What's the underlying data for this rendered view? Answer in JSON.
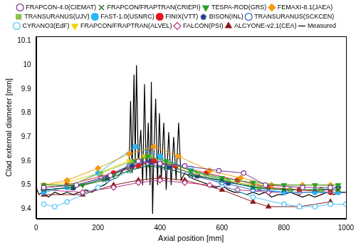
{
  "chart_data": {
    "type": "line",
    "x_label": "Axial position [mm]",
    "y_label": "Clad external diameter [mm]",
    "xlim": [
      0,
      1000
    ],
    "xticks": [
      0,
      200,
      400,
      600,
      800,
      1000
    ],
    "ylim": [
      9.36,
      10.12
    ],
    "yticks": [
      9.4,
      9.5,
      9.6,
      9.7,
      9.8,
      9.9,
      10,
      10.1
    ],
    "grid": false,
    "legend": "top",
    "series": [
      {
        "name": "FRAPCON-4.0(CIEMAT)",
        "color": "#7b3294",
        "marker": "circle-open",
        "x": [
          25,
          130,
          240,
          330,
          400,
          480,
          590,
          670,
          740,
          860,
          950
        ],
        "values": [
          9.49,
          9.5,
          9.54,
          9.6,
          9.59,
          9.58,
          9.56,
          9.55,
          9.5,
          9.49,
          9.49
        ]
      },
      {
        "name": "FRAPCON/FRAPTRAN(CRIEPI)",
        "color": "#1b5e20",
        "marker": "x",
        "x": [
          25,
          120,
          220,
          300,
          360,
          420,
          500,
          600,
          700,
          800,
          900,
          975
        ],
        "values": [
          9.48,
          9.49,
          9.52,
          9.56,
          9.58,
          9.57,
          9.54,
          9.52,
          9.49,
          9.48,
          9.48,
          9.48
        ]
      },
      {
        "name": "TESPA-ROD(GRS)",
        "color": "#2ca02c",
        "marker": "triangle-down",
        "x": [
          25,
          150,
          250,
          320,
          360,
          420,
          500,
          600,
          700,
          800,
          900,
          975
        ],
        "values": [
          9.5,
          9.5,
          9.54,
          9.6,
          9.62,
          9.6,
          9.56,
          9.53,
          9.51,
          9.5,
          9.5,
          9.5
        ]
      },
      {
        "name": "FEMAXI-8.1(JAEA)",
        "color": "#f39c12",
        "marker": "diamond",
        "x": [
          25,
          100,
          200,
          300,
          380,
          460,
          560,
          660,
          760,
          860,
          950
        ],
        "values": [
          9.5,
          9.52,
          9.57,
          9.63,
          9.66,
          9.62,
          9.56,
          9.53,
          9.5,
          9.5,
          9.5
        ]
      },
      {
        "name": "TRANSURANUS(UJV)",
        "color": "#8bc34a",
        "marker": "square",
        "x": [
          25,
          110,
          210,
          310,
          370,
          430,
          520,
          620,
          720,
          820,
          920,
          975
        ],
        "values": [
          9.49,
          9.5,
          9.55,
          9.6,
          9.62,
          9.59,
          9.55,
          9.52,
          9.49,
          9.48,
          9.48,
          9.48
        ]
      },
      {
        "name": "FAST-1.0(USNRC)",
        "color": "#29b6f6",
        "marker": "circle",
        "x": [
          25,
          100,
          200,
          320,
          400,
          500,
          600,
          700,
          800,
          900,
          975
        ],
        "values": [
          9.47,
          9.49,
          9.55,
          9.66,
          9.62,
          9.56,
          9.52,
          9.49,
          9.47,
          9.47,
          9.47
        ]
      },
      {
        "name": "FINIX(VTT)",
        "color": "#e31a1c",
        "marker": "circle",
        "x": [
          25,
          100,
          250,
          330,
          380,
          450,
          550,
          650,
          750,
          850,
          950
        ],
        "values": [
          9.49,
          9.5,
          9.55,
          9.58,
          9.6,
          9.58,
          9.55,
          9.52,
          9.49,
          9.48,
          9.47
        ]
      },
      {
        "name": "BISON(INL)",
        "color": "#1f3f8f",
        "marker": "pentagon",
        "x": [
          25,
          120,
          230,
          310,
          370,
          430,
          520,
          620,
          720,
          820,
          920,
          975
        ],
        "values": [
          9.48,
          9.49,
          9.53,
          9.58,
          9.6,
          9.58,
          9.54,
          9.51,
          9.49,
          9.48,
          9.48,
          9.49
        ]
      },
      {
        "name": "TRANSURANUS(SCKCEN)",
        "color": "#3060c0",
        "marker": "circle-open",
        "x": [
          25,
          110,
          210,
          300,
          360,
          420,
          500,
          600,
          700,
          800,
          900,
          975
        ],
        "values": [
          9.48,
          9.49,
          9.53,
          9.58,
          9.59,
          9.57,
          9.54,
          9.51,
          9.48,
          9.47,
          9.47,
          9.47
        ]
      },
      {
        "name": "CYRANO3(EdF)",
        "color": "#4fc3f7",
        "marker": "circle-open",
        "x": [
          25,
          60,
          100,
          200,
          300,
          400,
          500,
          600,
          700,
          800,
          850,
          900,
          950,
          1000
        ],
        "values": [
          9.42,
          9.41,
          9.43,
          9.49,
          9.56,
          9.6,
          9.57,
          9.5,
          9.45,
          9.42,
          9.41,
          9.41,
          9.42,
          9.42
        ]
      },
      {
        "name": "FRAPCON/FRAPTRAN(ALVEL)",
        "color": "#f5d000",
        "marker": "triangle-down",
        "x": [
          25,
          100,
          200,
          300,
          350,
          400,
          500,
          600,
          700,
          800,
          900,
          975
        ],
        "values": [
          9.5,
          9.51,
          9.55,
          9.6,
          9.62,
          9.6,
          9.55,
          9.52,
          9.5,
          9.5,
          9.5,
          9.5
        ]
      },
      {
        "name": "FALCON(PSI)",
        "color": "#b5337f",
        "marker": "diamond-open",
        "x": [
          25,
          150,
          250,
          330,
          400,
          480,
          560,
          650,
          750,
          850,
          950
        ],
        "values": [
          9.48,
          9.47,
          9.49,
          9.51,
          9.52,
          9.51,
          9.5,
          9.48,
          9.47,
          9.47,
          9.47
        ]
      },
      {
        "name": "ALCYONE-v2.1(CEA)",
        "color": "#8b1a1a",
        "marker": "triangle",
        "x": [
          25,
          150,
          250,
          330,
          400,
          480,
          600,
          700,
          750,
          850,
          950
        ],
        "values": [
          9.46,
          9.46,
          9.5,
          9.52,
          9.53,
          9.52,
          9.48,
          9.43,
          9.41,
          9.41,
          9.43
        ]
      },
      {
        "name": "Measured",
        "color": "#000000",
        "marker": "none",
        "x": [
          0,
          10,
          20,
          40,
          60,
          80,
          100,
          120,
          140,
          160,
          180,
          200,
          220,
          240,
          260,
          280,
          295,
          300,
          305,
          310,
          316,
          320,
          324,
          330,
          338,
          344,
          350,
          356,
          362,
          368,
          372,
          376,
          380,
          386,
          392,
          398,
          404,
          412,
          420,
          428,
          436,
          444,
          452,
          460,
          468,
          480,
          500,
          520,
          540,
          560,
          580,
          600,
          620,
          640,
          660,
          680,
          700,
          720,
          740,
          760,
          780,
          800,
          820,
          840,
          860,
          880,
          900,
          920,
          940,
          960,
          980,
          1000
        ],
        "values": [
          9.49,
          9.46,
          9.47,
          9.45,
          9.47,
          9.46,
          9.47,
          9.46,
          9.47,
          9.48,
          9.47,
          9.49,
          9.5,
          9.52,
          9.53,
          9.56,
          9.58,
          9.56,
          9.85,
          9.55,
          9.96,
          9.6,
          10.0,
          9.58,
          9.73,
          9.5,
          9.92,
          9.52,
          9.76,
          9.5,
          9.93,
          9.38,
          9.62,
          9.86,
          9.5,
          9.8,
          9.52,
          9.76,
          9.48,
          9.72,
          9.5,
          9.7,
          9.52,
          9.76,
          9.52,
          9.55,
          9.53,
          9.52,
          9.51,
          9.5,
          9.49,
          9.5,
          9.48,
          9.47,
          9.47,
          9.46,
          9.47,
          9.46,
          9.47,
          9.45,
          9.46,
          9.46,
          9.47,
          9.46,
          9.45,
          9.46,
          9.45,
          9.46,
          9.47,
          9.46,
          9.47,
          9.47
        ]
      }
    ]
  }
}
